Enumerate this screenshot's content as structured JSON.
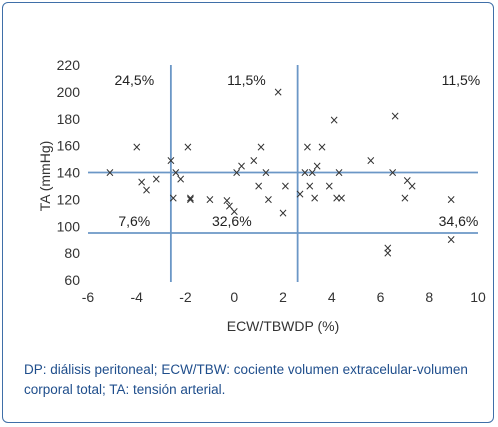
{
  "chart_data": {
    "type": "scatter",
    "title": "",
    "xlabel": "ECW/TBWDP (%)",
    "ylabel": "TA (mmHg)",
    "xlim": [
      -6,
      10
    ],
    "ylim": [
      60,
      220
    ],
    "xticks": [
      -6,
      -4,
      -2,
      0,
      2,
      4,
      6,
      8,
      10
    ],
    "yticks": [
      60,
      80,
      100,
      120,
      140,
      160,
      180,
      200,
      220
    ],
    "grid": false,
    "marker": "×",
    "reference_lines": {
      "vertical": [
        -2.6,
        2.6
      ],
      "horizontal": [
        140,
        95
      ]
    },
    "quadrant_labels": [
      {
        "text": "24,5%",
        "x": -4.1,
        "y": 209
      },
      {
        "text": "11,5%",
        "x": 0.5,
        "y": 209
      },
      {
        "text": "11,5%",
        "x": 9.3,
        "y": 209
      },
      {
        "text": "7,6%",
        "x": -4.1,
        "y": 104
      },
      {
        "text": "32,6%",
        "x": -0.1,
        "y": 104
      },
      {
        "text": "34,6%",
        "x": 9.2,
        "y": 104
      }
    ],
    "points": [
      [
        -5.1,
        140
      ],
      [
        -4.0,
        159
      ],
      [
        -3.8,
        133
      ],
      [
        -3.6,
        127
      ],
      [
        -3.2,
        135
      ],
      [
        -2.6,
        149
      ],
      [
        -2.4,
        140
      ],
      [
        -2.5,
        121
      ],
      [
        -2.2,
        135
      ],
      [
        -1.9,
        159
      ],
      [
        -1.8,
        121
      ],
      [
        -1.8,
        120
      ],
      [
        -1.0,
        120
      ],
      [
        -0.3,
        119
      ],
      [
        -0.2,
        115
      ],
      [
        0.0,
        111
      ],
      [
        0.1,
        140
      ],
      [
        0.3,
        145
      ],
      [
        0.8,
        149
      ],
      [
        1.0,
        130
      ],
      [
        1.1,
        159
      ],
      [
        1.4,
        120
      ],
      [
        1.3,
        140
      ],
      [
        1.8,
        200
      ],
      [
        2.0,
        110
      ],
      [
        2.1,
        130
      ],
      [
        2.7,
        124
      ],
      [
        3.0,
        159
      ],
      [
        2.9,
        140
      ],
      [
        3.1,
        130
      ],
      [
        3.3,
        121
      ],
      [
        3.2,
        140
      ],
      [
        3.4,
        145
      ],
      [
        3.6,
        159
      ],
      [
        3.9,
        130
      ],
      [
        4.1,
        179
      ],
      [
        4.3,
        140
      ],
      [
        4.4,
        121
      ],
      [
        4.2,
        121
      ],
      [
        5.6,
        149
      ],
      [
        6.3,
        80
      ],
      [
        6.3,
        84
      ],
      [
        6.5,
        140
      ],
      [
        6.6,
        182
      ],
      [
        7.0,
        121
      ],
      [
        7.1,
        134
      ],
      [
        7.3,
        130
      ],
      [
        8.9,
        120
      ],
      [
        8.9,
        90
      ]
    ]
  },
  "caption": "DP: diálisis peritoneal; ECW/TBW: cociente volumen extracelular-volumen corporal total; TA: tensión arterial."
}
